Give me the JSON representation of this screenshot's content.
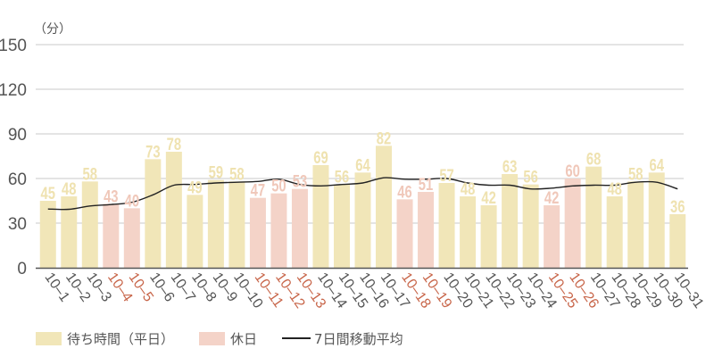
{
  "chart_data": {
    "type": "bar",
    "title": "",
    "ylabel": "（分）",
    "xlabel": "",
    "ylim": [
      0,
      150
    ],
    "yticks": [
      0,
      30,
      60,
      90,
      120,
      150
    ],
    "grid": true,
    "legend_position": "bottom-left",
    "categories": [
      "10-1",
      "10-2",
      "10-3",
      "10-4",
      "10-5",
      "10-6",
      "10-7",
      "10-8",
      "10-9",
      "10-10",
      "10-11",
      "10-12",
      "10-13",
      "10-14",
      "10-15",
      "10-16",
      "10-17",
      "10-18",
      "10-19",
      "10-20",
      "10-21",
      "10-22",
      "10-23",
      "10-24",
      "10-25",
      "10-26",
      "10-27",
      "10-28",
      "10-29",
      "10-30",
      "10-31"
    ],
    "holidays": [
      "10-4",
      "10-5",
      "10-11",
      "10-12",
      "10-13",
      "10-18",
      "10-19",
      "10-25",
      "10-26"
    ],
    "series": [
      {
        "name": "待ち時間（平日）／休日",
        "type": "bar",
        "values": [
          45,
          48,
          58,
          43,
          40,
          73,
          78,
          49,
          59,
          58,
          47,
          50,
          53,
          69,
          56,
          64,
          82,
          46,
          51,
          57,
          48,
          42,
          63,
          56,
          42,
          60,
          68,
          48,
          58,
          64,
          36
        ]
      },
      {
        "name": "7日間移動平均",
        "type": "line",
        "values": [
          39.5,
          39.3,
          41.5,
          42.5,
          44,
          49,
          55.5,
          56,
          57,
          57.5,
          58,
          59.5,
          56,
          55,
          56,
          57,
          60.5,
          59.5,
          59.5,
          60,
          57,
          55.5,
          55.5,
          53,
          53.5,
          55,
          55.5,
          55.5,
          57.5,
          57.5,
          53
        ]
      }
    ],
    "legend": [
      {
        "label": "待ち時間（平日）",
        "kind": "bar",
        "color": "#f1e6b8"
      },
      {
        "label": "休日",
        "kind": "bar",
        "color": "#f4d3c8"
      },
      {
        "label": "7日間移動平均",
        "kind": "line",
        "color": "#222222"
      }
    ]
  },
  "colors": {
    "weekday_bar": "#f1e6b8",
    "weekday_label": "#efe2b0",
    "holiday_bar": "#f4d3c8",
    "holiday_label": "#f0c8ba",
    "holiday_tick": "#c8664a",
    "tick": "#555555",
    "grid": "#c8c8c8",
    "axis": "#555555",
    "line": "#222222"
  }
}
